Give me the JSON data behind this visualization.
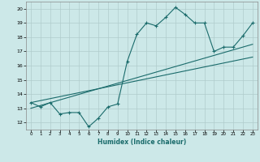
{
  "xlabel": "Humidex (Indice chaleur)",
  "bg_color": "#cce8e8",
  "grid_color": "#b0cccc",
  "line_color": "#1a6b6b",
  "xlim": [
    -0.5,
    23.5
  ],
  "ylim": [
    11.5,
    20.5
  ],
  "xticks": [
    0,
    1,
    2,
    3,
    4,
    5,
    6,
    7,
    8,
    9,
    10,
    11,
    12,
    13,
    14,
    15,
    16,
    17,
    18,
    19,
    20,
    21,
    22,
    23
  ],
  "yticks": [
    12,
    13,
    14,
    15,
    16,
    17,
    18,
    19,
    20
  ],
  "curve1_x": [
    0,
    1,
    2,
    3,
    4,
    5,
    6,
    7,
    8,
    9,
    10,
    11,
    12,
    13,
    14,
    15,
    16,
    17,
    18,
    19,
    20,
    21,
    22,
    23
  ],
  "curve1_y": [
    13.4,
    13.1,
    13.4,
    12.6,
    12.7,
    12.7,
    11.7,
    12.3,
    13.1,
    13.3,
    16.3,
    18.2,
    19.0,
    18.8,
    19.4,
    20.1,
    19.6,
    19.0,
    19.0,
    17.0,
    17.3,
    17.3,
    18.1,
    19.0
  ],
  "line2_x": [
    0,
    23
  ],
  "line2_y": [
    13.0,
    17.5
  ],
  "line3_x": [
    0,
    23
  ],
  "line3_y": [
    13.4,
    16.6
  ]
}
